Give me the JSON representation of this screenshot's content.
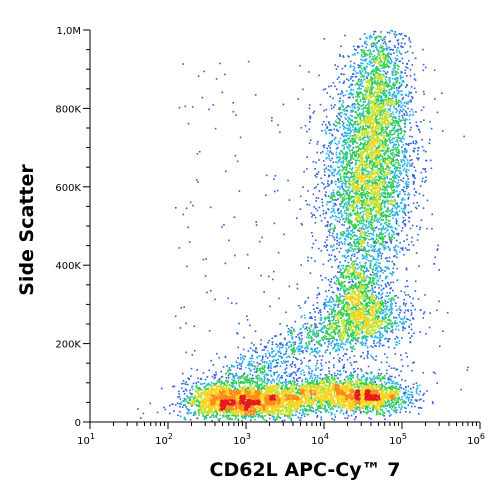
{
  "chart_data": {
    "type": "scatter",
    "subtype": "flow-cytometry-density-dot-plot",
    "xlabel": "CD62L APC-Cy™ 7",
    "ylabel": "Side Scatter",
    "x_scale": "log",
    "x_range": [
      10,
      1000000
    ],
    "x_ticks": [
      {
        "value": 10,
        "base": "10",
        "exp": "1"
      },
      {
        "value": 100,
        "base": "10",
        "exp": "2"
      },
      {
        "value": 1000,
        "base": "10",
        "exp": "3"
      },
      {
        "value": 10000,
        "base": "10",
        "exp": "4"
      },
      {
        "value": 100000,
        "base": "10",
        "exp": "5"
      },
      {
        "value": 1000000,
        "base": "10",
        "exp": "6"
      }
    ],
    "y_scale": "linear",
    "y_range": [
      0,
      1000000
    ],
    "y_ticks": [
      {
        "value": 0,
        "label": "0"
      },
      {
        "value": 200000,
        "label": "200K"
      },
      {
        "value": 400000,
        "label": "400K"
      },
      {
        "value": 600000,
        "label": "600K"
      },
      {
        "value": 800000,
        "label": "800K"
      },
      {
        "value": 1000000,
        "label": "1,0M"
      }
    ],
    "grid": false,
    "legend": "none",
    "density_colors": [
      "#1a1aa8",
      "#2a5fe0",
      "#23b4e6",
      "#2ecc55",
      "#c8e02a",
      "#ffd21a",
      "#ff8a14",
      "#e41a1c"
    ],
    "populations": [
      {
        "x_center": 900,
        "y_center": 45000,
        "density": "high"
      },
      {
        "x_center": 35000,
        "y_center": 55000,
        "density": "high"
      },
      {
        "x_center": 35000,
        "y_center": 600000,
        "density": "medium-high"
      },
      {
        "x_center": 30000,
        "y_center": 250000,
        "density": "medium"
      }
    ]
  }
}
